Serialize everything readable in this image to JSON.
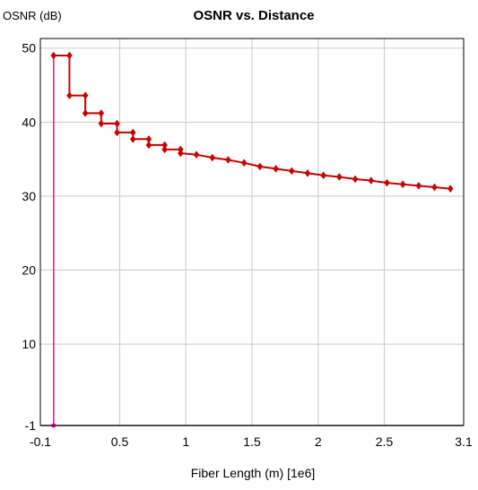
{
  "chart_data": {
    "type": "line",
    "title": "OSNR vs. Distance",
    "ylabel": "OSNR (dB)",
    "xlabel": "Fiber Length (m) [1e6]",
    "xlim": [
      -0.1,
      3.1
    ],
    "ylim": [
      -1,
      51.3
    ],
    "grid": true,
    "x_ticks": [
      -0.1,
      0.5,
      1,
      1.5,
      2,
      2.5,
      3.1
    ],
    "x_tick_labels": [
      "-0.1",
      "0.5",
      "1",
      "1.5",
      "2",
      "2.5",
      "3.1"
    ],
    "y_ticks": [
      -1,
      10,
      20,
      30,
      40,
      50
    ],
    "y_tick_labels": [
      "-1",
      "10",
      "20",
      "30",
      "40",
      "50"
    ],
    "reference_line": {
      "y": -1,
      "color": "#404040"
    },
    "series": [
      {
        "color": "#ff00a0",
        "style": "line",
        "points": [
          [
            0.0,
            49.0
          ],
          [
            0.0,
            -1.0
          ]
        ]
      },
      {
        "color": "#c80000",
        "style": "step",
        "points": [
          [
            0.0,
            49.0
          ],
          [
            0.12,
            49.0
          ],
          [
            0.12,
            43.6
          ],
          [
            0.24,
            43.6
          ],
          [
            0.24,
            41.2
          ],
          [
            0.36,
            41.2
          ],
          [
            0.36,
            39.8
          ],
          [
            0.48,
            39.8
          ],
          [
            0.48,
            38.6
          ],
          [
            0.6,
            38.6
          ],
          [
            0.6,
            37.7
          ],
          [
            0.72,
            37.7
          ],
          [
            0.72,
            36.9
          ],
          [
            0.84,
            36.9
          ],
          [
            0.84,
            36.3
          ],
          [
            0.96,
            36.3
          ],
          [
            0.96,
            35.8
          ],
          [
            1.08,
            35.6
          ],
          [
            1.2,
            35.2
          ],
          [
            1.32,
            34.9
          ],
          [
            1.44,
            34.5
          ],
          [
            1.56,
            34.0
          ],
          [
            1.68,
            33.7
          ],
          [
            1.8,
            33.4
          ],
          [
            1.92,
            33.1
          ],
          [
            2.04,
            32.8
          ],
          [
            2.16,
            32.6
          ],
          [
            2.28,
            32.3
          ],
          [
            2.4,
            32.1
          ],
          [
            2.52,
            31.8
          ],
          [
            2.64,
            31.6
          ],
          [
            2.76,
            31.4
          ],
          [
            2.88,
            31.2
          ],
          [
            3.0,
            31.0
          ]
        ],
        "markers": [
          [
            0.0,
            49.0
          ],
          [
            0.12,
            49.0
          ],
          [
            0.12,
            43.6
          ],
          [
            0.24,
            43.6
          ],
          [
            0.24,
            41.2
          ],
          [
            0.36,
            41.2
          ],
          [
            0.36,
            39.8
          ],
          [
            0.48,
            39.8
          ],
          [
            0.48,
            38.6
          ],
          [
            0.6,
            38.6
          ],
          [
            0.6,
            37.7
          ],
          [
            0.72,
            37.7
          ],
          [
            0.72,
            36.9
          ],
          [
            0.84,
            36.9
          ],
          [
            0.84,
            36.3
          ],
          [
            0.96,
            36.3
          ],
          [
            0.96,
            35.8
          ],
          [
            1.08,
            35.6
          ],
          [
            1.2,
            35.2
          ],
          [
            1.32,
            34.9
          ],
          [
            1.44,
            34.5
          ],
          [
            1.56,
            34.0
          ],
          [
            1.68,
            33.7
          ],
          [
            1.8,
            33.4
          ],
          [
            1.92,
            33.1
          ],
          [
            2.04,
            32.8
          ],
          [
            2.16,
            32.6
          ],
          [
            2.28,
            32.3
          ],
          [
            2.4,
            32.1
          ],
          [
            2.52,
            31.8
          ],
          [
            2.64,
            31.6
          ],
          [
            2.76,
            31.4
          ],
          [
            2.88,
            31.2
          ],
          [
            3.0,
            31.0
          ]
        ]
      }
    ]
  }
}
